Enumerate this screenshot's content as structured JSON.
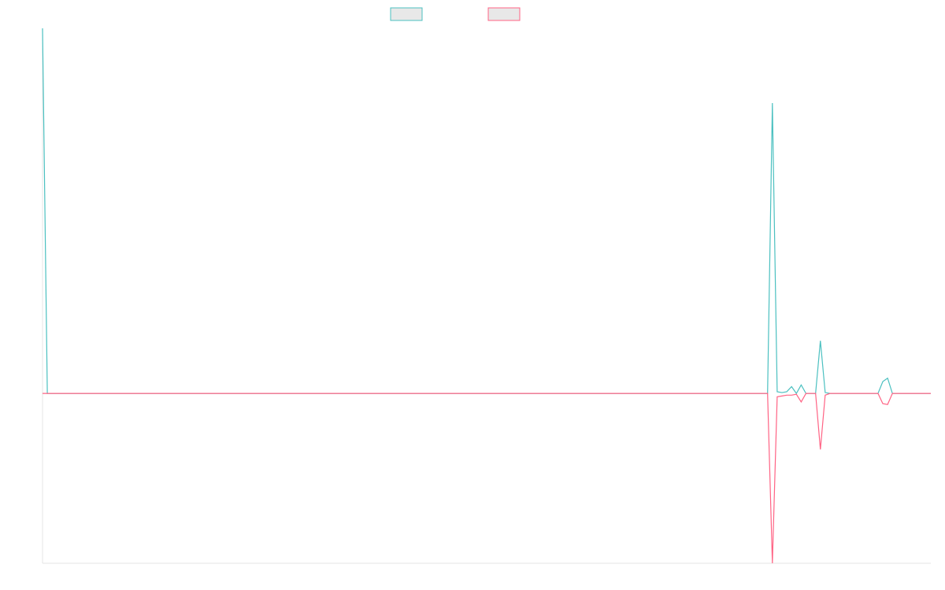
{
  "chart_data": {
    "type": "line",
    "ylim": [
      -1,
      2.15
    ],
    "legend": "top",
    "grid": false,
    "series": [
      {
        "color": "#4bc0c0",
        "values": [
          2.15,
          0,
          0,
          0,
          0,
          0,
          0,
          0,
          0,
          0,
          0,
          0,
          0,
          0,
          0,
          0,
          0,
          0,
          0,
          0,
          0,
          0,
          0,
          0,
          0,
          0,
          0,
          0,
          0,
          0,
          0,
          0,
          0,
          0,
          0,
          0,
          0,
          0,
          0,
          0,
          0,
          0,
          0,
          0,
          0,
          0,
          0,
          0,
          0,
          0,
          0,
          0,
          0,
          0,
          0,
          0,
          0,
          0,
          0,
          0,
          0,
          0,
          0,
          0,
          0,
          0,
          0,
          0,
          0,
          0,
          0,
          0,
          0,
          0,
          0,
          0,
          0,
          0,
          0,
          0,
          0,
          0,
          0,
          0,
          0,
          0,
          0,
          0,
          0,
          0,
          0,
          0,
          0,
          0,
          0,
          0,
          0,
          0,
          0,
          0,
          0,
          0,
          0,
          0,
          0,
          0,
          0,
          0,
          0,
          0,
          0,
          0,
          0,
          0,
          0,
          0,
          0,
          0,
          0,
          0,
          0,
          0,
          0,
          0,
          0,
          0,
          0,
          0,
          0,
          0,
          0,
          0,
          0,
          0,
          0,
          0,
          0,
          0,
          0,
          0,
          0,
          0,
          0,
          0,
          0,
          0,
          0,
          0,
          0,
          0,
          0,
          0,
          1.71,
          0.01,
          0.005,
          0.01,
          0.04,
          0,
          0.05,
          0,
          0,
          0,
          0.31,
          0.005,
          0,
          0,
          0,
          0,
          0,
          0,
          0,
          0,
          0,
          0,
          0,
          0.07,
          0.09,
          0,
          0,
          0,
          0,
          0,
          0,
          0,
          0,
          0
        ]
      },
      {
        "color": "#ff6384",
        "values": [
          0,
          0,
          0,
          0,
          0,
          0,
          0,
          0,
          0,
          0,
          0,
          0,
          0,
          0,
          0,
          0,
          0,
          0,
          0,
          0,
          0,
          0,
          0,
          0,
          0,
          0,
          0,
          0,
          0,
          0,
          0,
          0,
          0,
          0,
          0,
          0,
          0,
          0,
          0,
          0,
          0,
          0,
          0,
          0,
          0,
          0,
          0,
          0,
          0,
          0,
          0,
          0,
          0,
          0,
          0,
          0,
          0,
          0,
          0,
          0,
          0,
          0,
          0,
          0,
          0,
          0,
          0,
          0,
          0,
          0,
          0,
          0,
          0,
          0,
          0,
          0,
          0,
          0,
          0,
          0,
          0,
          0,
          0,
          0,
          0,
          0,
          0,
          0,
          0,
          0,
          0,
          0,
          0,
          0,
          0,
          0,
          0,
          0,
          0,
          0,
          0,
          0,
          0,
          0,
          0,
          0,
          0,
          0,
          0,
          0,
          0,
          0,
          0,
          0,
          0,
          0,
          0,
          0,
          0,
          0,
          0,
          0,
          0,
          0,
          0,
          0,
          0,
          0,
          0,
          0,
          0,
          0,
          0,
          0,
          0,
          0,
          0,
          0,
          0,
          0,
          0,
          0,
          0,
          0,
          0,
          0,
          0,
          0,
          0,
          0,
          0,
          0,
          -1,
          -0.02,
          -0.015,
          -0.01,
          -0.01,
          -0.005,
          -0.05,
          0,
          0,
          0,
          -0.33,
          -0.01,
          0,
          0,
          0,
          0,
          0,
          0,
          0,
          0,
          0,
          0,
          0,
          -0.06,
          -0.065,
          0,
          0,
          0,
          0,
          0,
          0,
          0,
          0,
          0
        ]
      }
    ]
  }
}
